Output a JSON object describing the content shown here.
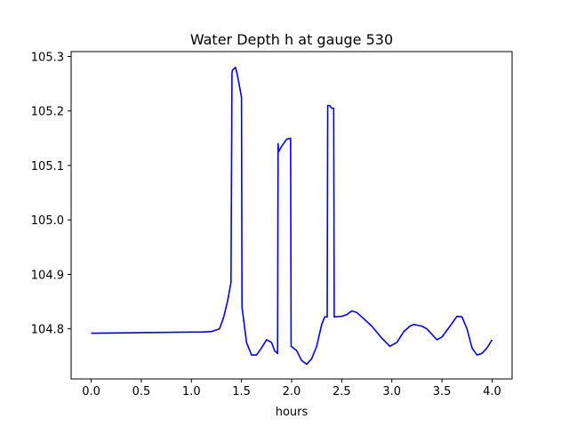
{
  "chart_data": {
    "type": "line",
    "title": "Water Depth h at gauge 530",
    "xlabel": "hours",
    "ylabel": "",
    "xlim": [
      -0.2,
      4.2
    ],
    "ylim": [
      104.708,
      105.309
    ],
    "grid": false,
    "x_ticks": [
      0.0,
      0.5,
      1.0,
      1.5,
      2.0,
      2.5,
      3.0,
      3.5,
      4.0
    ],
    "x_tick_labels": [
      "0.0",
      "0.5",
      "1.0",
      "1.5",
      "2.0",
      "2.5",
      "3.0",
      "3.5",
      "4.0"
    ],
    "y_ticks": [
      104.8,
      104.9,
      105.0,
      105.1,
      105.2,
      105.3
    ],
    "y_tick_labels": [
      "104.8",
      "104.9",
      "105.0",
      "105.1",
      "105.2",
      "105.3"
    ],
    "series": [
      {
        "color": "#0000ff",
        "x": [
          0.0,
          0.5,
          1.0,
          1.1,
          1.2,
          1.28,
          1.32,
          1.36,
          1.395,
          1.405,
          1.41,
          1.44,
          1.46,
          1.5,
          1.505,
          1.55,
          1.6,
          1.65,
          1.7,
          1.75,
          1.8,
          1.83,
          1.86,
          1.865,
          1.87,
          1.9,
          1.95,
          1.99,
          1.995,
          2.05,
          2.1,
          2.15,
          2.2,
          2.25,
          2.3,
          2.33,
          2.355,
          2.36,
          2.38,
          2.4,
          2.42,
          2.425,
          2.5,
          2.55,
          2.6,
          2.65,
          2.7,
          2.8,
          2.9,
          2.98,
          3.05,
          3.12,
          3.18,
          3.22,
          3.3,
          3.35,
          3.4,
          3.45,
          3.5,
          3.6,
          3.65,
          3.7,
          3.75,
          3.8,
          3.85,
          3.9,
          3.95,
          4.0
        ],
        "y": [
          104.792,
          104.793,
          104.794,
          104.794,
          104.795,
          104.8,
          104.82,
          104.85,
          104.885,
          105.27,
          105.275,
          105.28,
          105.265,
          105.225,
          104.84,
          104.775,
          104.752,
          104.752,
          104.765,
          104.78,
          104.775,
          104.76,
          104.755,
          105.14,
          105.125,
          105.135,
          105.148,
          105.15,
          104.768,
          104.76,
          104.742,
          104.735,
          104.745,
          104.768,
          104.808,
          104.822,
          104.822,
          105.21,
          105.21,
          105.205,
          105.205,
          104.822,
          104.823,
          104.826,
          104.833,
          104.83,
          104.822,
          104.805,
          104.783,
          104.768,
          104.775,
          104.795,
          104.805,
          104.808,
          104.805,
          104.8,
          104.79,
          104.78,
          104.785,
          104.81,
          104.823,
          104.822,
          104.8,
          104.765,
          104.752,
          104.755,
          104.765,
          104.78
        ]
      }
    ]
  }
}
